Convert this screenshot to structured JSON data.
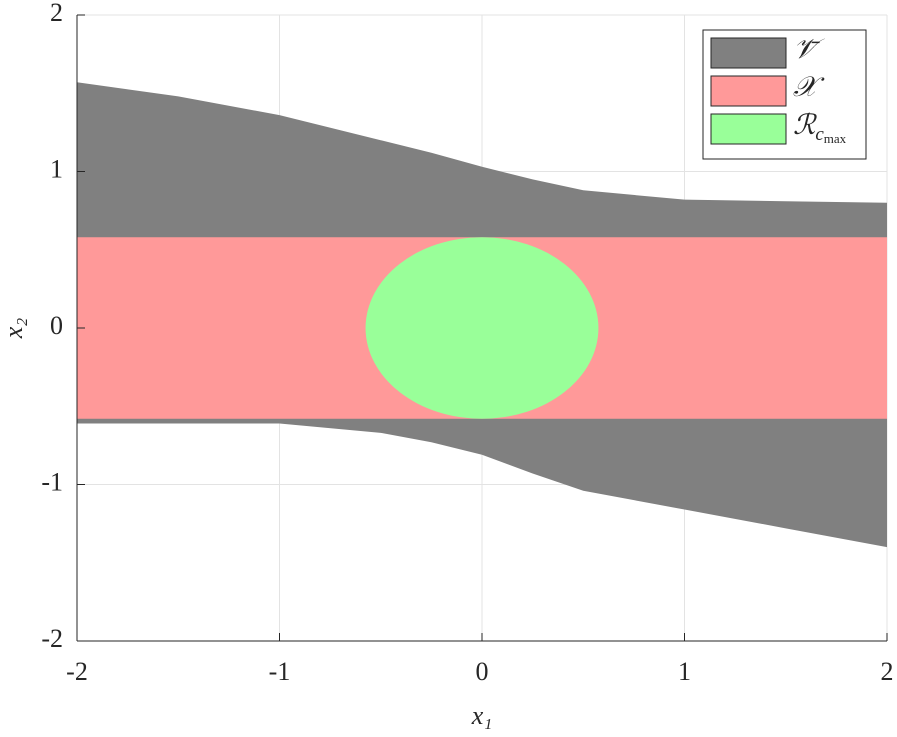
{
  "chart_data": {
    "type": "region",
    "xlabel": "x₁",
    "ylabel": "x₂",
    "xlim": [
      -2,
      2
    ],
    "ylim": [
      -2,
      2
    ],
    "xticks": [
      -2,
      -1,
      0,
      1,
      2
    ],
    "yticks": [
      -2,
      -1,
      0,
      1,
      2
    ],
    "grid": true,
    "legend": "northeast",
    "series": [
      {
        "name": "𝒱̄",
        "type": "band",
        "color": "#808080",
        "x": [
          -2,
          -1.5,
          -1,
          -0.5,
          -0.25,
          0,
          0.25,
          0.5,
          1,
          1.5,
          2
        ],
        "upper": [
          1.57,
          1.48,
          1.36,
          1.2,
          1.12,
          1.03,
          0.95,
          0.88,
          0.82,
          0.81,
          0.8
        ],
        "lower": [
          -0.61,
          -0.61,
          -0.61,
          -0.67,
          -0.73,
          -0.81,
          -0.93,
          -1.04,
          -1.16,
          -1.28,
          -1.4
        ]
      },
      {
        "name": "𝒳",
        "type": "band",
        "color": "#ff9999",
        "x": [
          -2,
          2
        ],
        "upper": [
          0.58,
          0.58
        ],
        "lower": [
          -0.58,
          -0.58
        ]
      },
      {
        "name": "ℛ",
        "name_subscript": "c",
        "name_subsubscript": "max",
        "type": "ellipse",
        "color": "#99ff99",
        "center": [
          0,
          0
        ],
        "radii": [
          0.575,
          0.58
        ]
      }
    ]
  }
}
